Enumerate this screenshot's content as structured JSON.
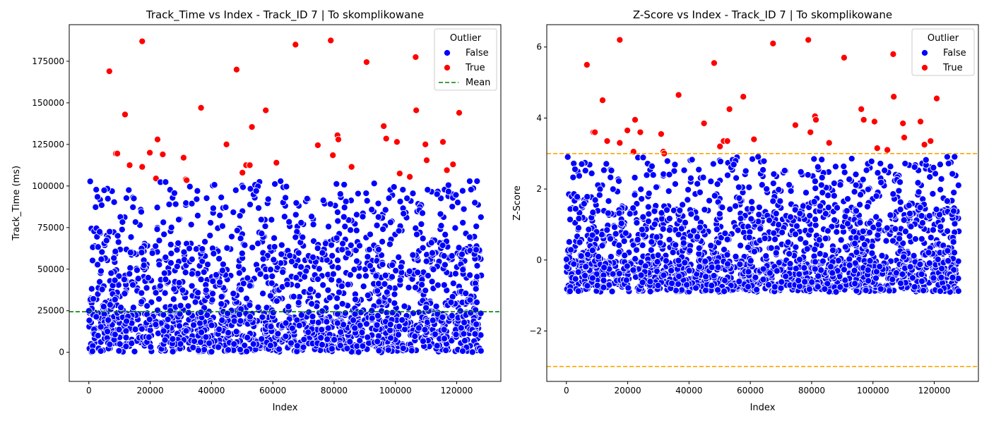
{
  "colors": {
    "inlier": "#0000ff",
    "outlier": "#ff0000",
    "mean_line": "#008000",
    "threshold_line": "#ffa500",
    "marker_edge": "#ffffff"
  },
  "chart_data": [
    {
      "type": "scatter",
      "title": "Track_Time vs Index - Track_ID 7 | To skomplikowane",
      "xlabel": "Index",
      "ylabel": "Track_Time (ms)",
      "xlim": [
        -6400,
        134400
      ],
      "ylim": [
        -17500,
        197000
      ],
      "xticks": [
        0,
        20000,
        40000,
        60000,
        80000,
        100000,
        120000
      ],
      "yticks": [
        0,
        25000,
        50000,
        75000,
        100000,
        125000,
        150000,
        175000
      ],
      "grid": false,
      "legend": {
        "title": "Outlier",
        "position": "top-right",
        "entries": [
          {
            "label": "False",
            "kind": "marker",
            "color": "#0000ff"
          },
          {
            "label": "True",
            "kind": "marker",
            "color": "#ff0000"
          },
          {
            "label": "Mean",
            "kind": "dashed-line",
            "color": "#008000"
          }
        ]
      },
      "reference_lines": [
        {
          "label": "Mean",
          "y": 24400,
          "color": "#008000",
          "style": "dashed"
        }
      ],
      "series": [
        {
          "name": "True",
          "color": "#ff0000",
          "x": [
            6700,
            17400,
            8800,
            9300,
            11800,
            13300,
            17400,
            19900,
            21900,
            22400,
            24100,
            30900,
            31600,
            31900,
            36600,
            44900,
            48200,
            50100,
            51300,
            52500,
            53200,
            57700,
            61200,
            67400,
            74700,
            78900,
            79600,
            81100,
            81400,
            85700,
            90600,
            96200,
            97000,
            100500,
            101400,
            104700,
            106600,
            106800,
            109800,
            110200,
            115500,
            116800,
            118800,
            120800
          ],
          "y": [
            169000,
            187000,
            119500,
            119500,
            143000,
            112500,
            111500,
            120000,
            104500,
            128000,
            119000,
            117000,
            104000,
            103500,
            147000,
            125000,
            170000,
            108000,
            112500,
            112500,
            135500,
            145500,
            114000,
            185000,
            124500,
            187500,
            118500,
            130500,
            128000,
            111500,
            174500,
            136000,
            128500,
            126500,
            107500,
            105500,
            177500,
            145500,
            125000,
            115500,
            126500,
            109500,
            113000,
            144000
          ]
        },
        {
          "name": "False",
          "color": "#0000ff",
          "generated": "dense band of roughly 2000 inlier points for Index 0–128000, Track_Time 0–103000 ms, concentrated below 25000 ms"
        }
      ]
    },
    {
      "type": "scatter",
      "title": "Z-Score vs Index - Track_ID 7 | To skomplikowane",
      "xlabel": "Index",
      "ylabel": "Z-Score",
      "xlim": [
        -6400,
        134400
      ],
      "ylim": [
        -3.42,
        6.63
      ],
      "xticks": [
        0,
        20000,
        40000,
        60000,
        80000,
        100000,
        120000
      ],
      "yticks": [
        -2,
        0,
        2,
        4,
        6
      ],
      "grid": false,
      "legend": {
        "title": "Outlier",
        "position": "top-right",
        "entries": [
          {
            "label": "False",
            "kind": "marker",
            "color": "#0000ff"
          },
          {
            "label": "True",
            "kind": "marker",
            "color": "#ff0000"
          }
        ]
      },
      "reference_lines": [
        {
          "y": 3,
          "color": "#ffa500",
          "style": "dashed"
        },
        {
          "y": -3,
          "color": "#ffa500",
          "style": "dashed"
        }
      ],
      "series": [
        {
          "name": "True",
          "color": "#ff0000",
          "x": [
            6700,
            8800,
            9300,
            11800,
            13300,
            17400,
            17400,
            19900,
            21900,
            22400,
            24100,
            30900,
            31600,
            31900,
            36600,
            44900,
            48200,
            50100,
            51300,
            52500,
            53200,
            57700,
            61200,
            67400,
            74700,
            78900,
            79600,
            81100,
            81400,
            85700,
            90600,
            96200,
            97000,
            100500,
            101400,
            104700,
            106600,
            106800,
            109800,
            110200,
            115500,
            116800,
            118800,
            120800
          ],
          "y": [
            5.5,
            3.6,
            3.6,
            4.5,
            3.35,
            6.2,
            3.3,
            3.65,
            3.05,
            3.95,
            3.6,
            3.55,
            3.05,
            3.0,
            4.65,
            3.85,
            5.55,
            3.2,
            3.35,
            3.35,
            4.25,
            4.6,
            3.4,
            6.1,
            3.8,
            6.2,
            3.6,
            4.05,
            3.95,
            3.3,
            5.7,
            4.25,
            3.95,
            3.9,
            3.15,
            3.1,
            5.8,
            4.6,
            3.85,
            3.45,
            3.9,
            3.25,
            3.35,
            4.55
          ]
        },
        {
          "name": "False",
          "color": "#0000ff",
          "generated": "dense band of roughly 2000 inlier points for Index 0–128000, Z-Score -0.9 to 3.0, concentrated between -0.9 and 0"
        }
      ]
    }
  ]
}
